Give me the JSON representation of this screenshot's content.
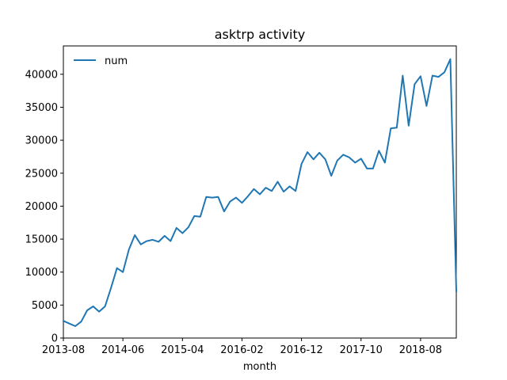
{
  "chart_data": {
    "type": "line",
    "title": "asktrp activity",
    "xlabel": "month",
    "ylabel": "",
    "x": [
      "2013-08",
      "2013-09",
      "2013-10",
      "2013-11",
      "2013-12",
      "2014-01",
      "2014-02",
      "2014-03",
      "2014-04",
      "2014-05",
      "2014-06",
      "2014-07",
      "2014-08",
      "2014-09",
      "2014-10",
      "2014-11",
      "2014-12",
      "2015-01",
      "2015-02",
      "2015-03",
      "2015-04",
      "2015-05",
      "2015-06",
      "2015-07",
      "2015-08",
      "2015-09",
      "2015-10",
      "2015-11",
      "2015-12",
      "2016-01",
      "2016-02",
      "2016-03",
      "2016-04",
      "2016-05",
      "2016-06",
      "2016-07",
      "2016-08",
      "2016-09",
      "2016-10",
      "2016-11",
      "2016-12",
      "2017-01",
      "2017-02",
      "2017-03",
      "2017-04",
      "2017-05",
      "2017-06",
      "2017-07",
      "2017-08",
      "2017-09",
      "2017-10",
      "2017-11",
      "2017-12",
      "2018-01",
      "2018-02",
      "2018-03",
      "2018-04",
      "2018-05",
      "2018-06",
      "2018-07",
      "2018-08",
      "2018-09",
      "2018-10",
      "2018-11",
      "2018-12",
      "2019-01",
      "2019-02"
    ],
    "series": [
      {
        "name": "num",
        "color": "#1f77b4",
        "values": [
          2600,
          2200,
          1800,
          2500,
          4200,
          4800,
          4000,
          4800,
          7600,
          10600,
          10000,
          13400,
          15600,
          14200,
          14700,
          14900,
          14600,
          15500,
          14700,
          16700,
          15900,
          16800,
          18500,
          18400,
          21400,
          21300,
          21400,
          19200,
          20700,
          21300,
          20500,
          21500,
          22600,
          21800,
          22800,
          22300,
          23700,
          22200,
          23000,
          22300,
          26400,
          28200,
          27100,
          28100,
          27100,
          24600,
          26900,
          27800,
          27400,
          26600,
          27200,
          25700,
          25700,
          28400,
          26600,
          31800,
          31900,
          39800,
          32200,
          38500,
          39700,
          35200,
          39800,
          39600,
          40300,
          42300,
          7100
        ]
      }
    ],
    "xticks": [
      "2013-08",
      "2014-06",
      "2015-04",
      "2016-02",
      "2016-12",
      "2017-10",
      "2018-08"
    ],
    "yticks": [
      0,
      5000,
      10000,
      15000,
      20000,
      25000,
      30000,
      35000,
      40000
    ],
    "ylim": [
      0,
      44300
    ],
    "xlim": [
      "2013-08",
      "2019-02"
    ],
    "legend": {
      "position": "top-left",
      "entries": [
        "num"
      ]
    },
    "grid": false
  }
}
